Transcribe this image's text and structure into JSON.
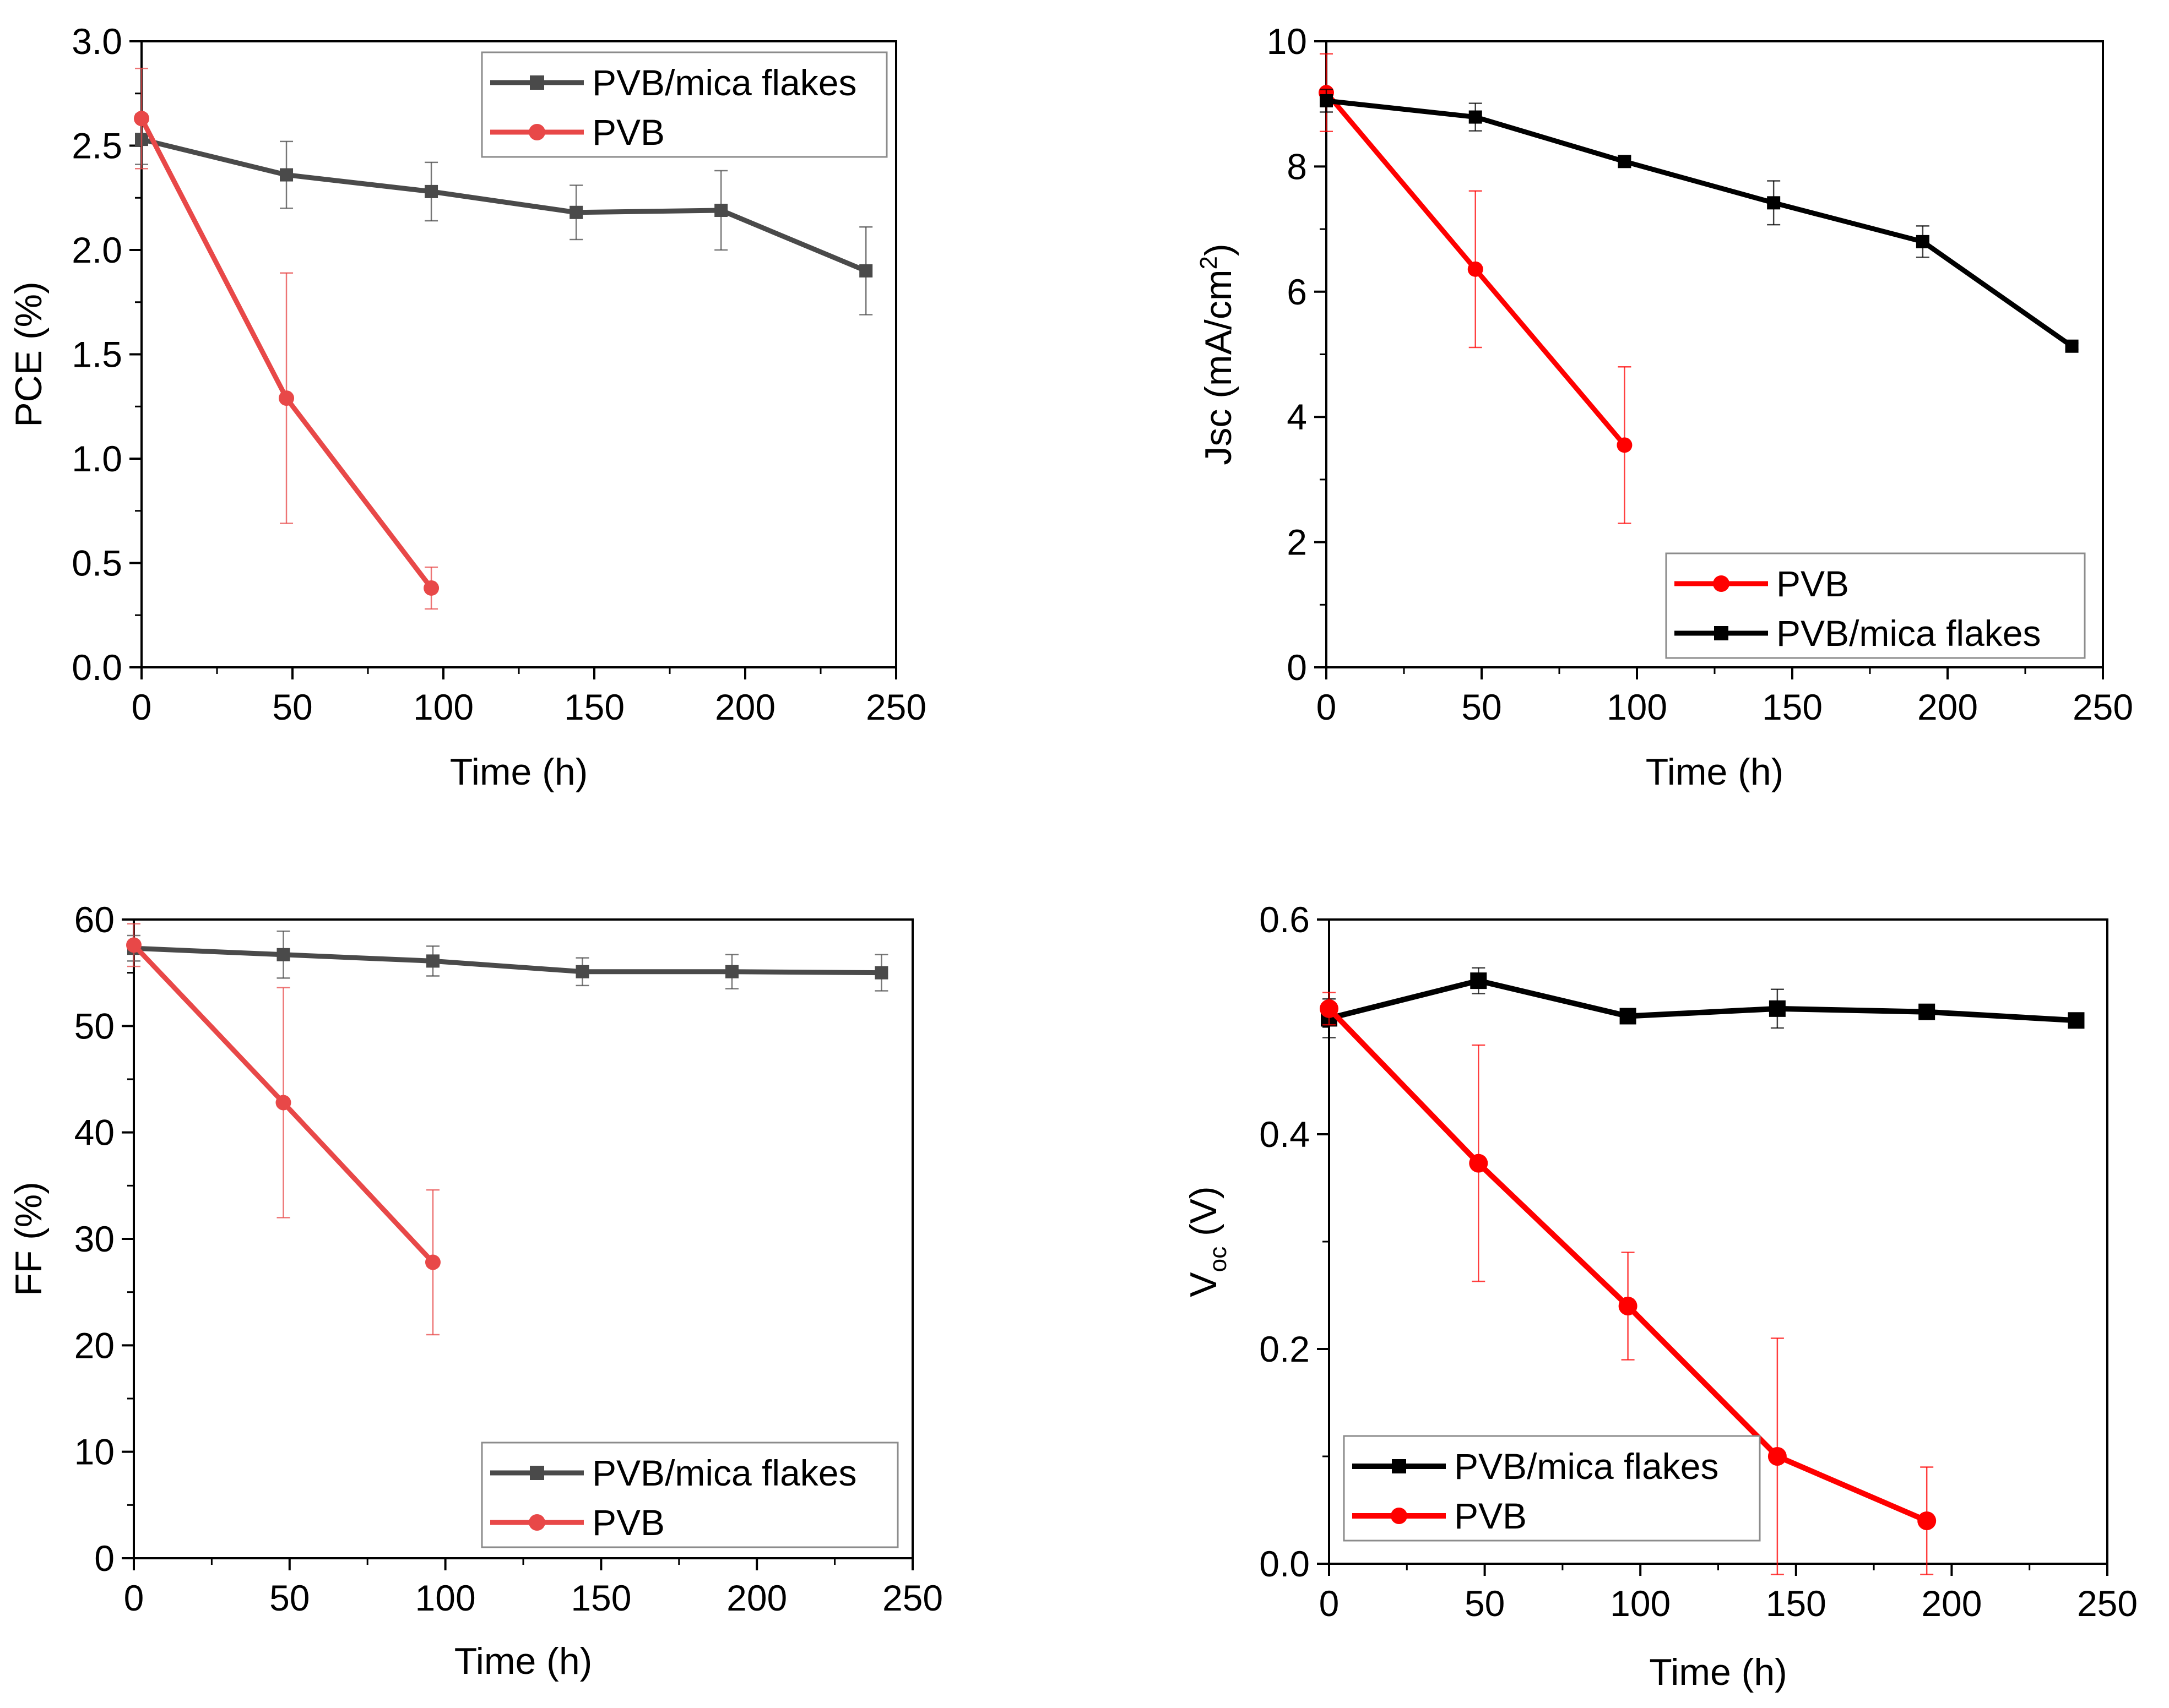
{
  "figure": {
    "background": "#ffffff"
  },
  "chart_data": [
    {
      "id": "pce",
      "type": "line",
      "xlabel": "Time (h)",
      "ylabel": "PCE (%)",
      "xlim": [
        0,
        250
      ],
      "ylim": [
        0,
        3.0
      ],
      "xticks": [
        "0",
        "50",
        "100",
        "150",
        "200",
        "250"
      ],
      "yticks": [
        "0.0",
        "0.5",
        "1.0",
        "1.5",
        "2.0",
        "2.5",
        "3.0"
      ],
      "legend_position": "top-right",
      "series": [
        {
          "name": "PVB/mica flakes",
          "color": "#4a4a4a",
          "marker": "square",
          "x": [
            0,
            48,
            96,
            144,
            192,
            240
          ],
          "y": [
            2.53,
            2.36,
            2.28,
            2.18,
            2.19,
            1.9
          ],
          "err": [
            0.12,
            0.16,
            0.14,
            0.13,
            0.19,
            0.21
          ]
        },
        {
          "name": "PVB",
          "color": "#e84848",
          "marker": "circle",
          "x": [
            0,
            48,
            96
          ],
          "y": [
            2.63,
            1.29,
            0.38
          ],
          "err": [
            0.24,
            0.6,
            0.1
          ]
        }
      ]
    },
    {
      "id": "jsc",
      "type": "line",
      "xlabel": "Time (h)",
      "ylabel": "Jsc (mA/cm",
      "ylabel_sup": "2",
      "ylabel_end": ")",
      "xlim": [
        0,
        250
      ],
      "ylim": [
        0,
        10
      ],
      "xticks": [
        "0",
        "50",
        "100",
        "150",
        "200",
        "250"
      ],
      "yticks": [
        "0",
        "2",
        "4",
        "6",
        "8",
        "10"
      ],
      "legend_position": "bottom-right",
      "series": [
        {
          "name": "PVB",
          "color": "#ff0000",
          "marker": "circle",
          "x": [
            0,
            48,
            96
          ],
          "y": [
            9.18,
            6.36,
            3.55
          ],
          "err": [
            0.62,
            1.25,
            1.25
          ]
        },
        {
          "name": "PVB/mica flakes",
          "color": "#000000",
          "marker": "square",
          "x": [
            0,
            48,
            96,
            144,
            192,
            240
          ],
          "y": [
            9.05,
            8.79,
            8.08,
            7.42,
            6.8,
            5.13
          ],
          "err": [
            0.18,
            0.22,
            0.08,
            0.35,
            0.25,
            0.05
          ]
        }
      ]
    },
    {
      "id": "ff",
      "type": "line",
      "xlabel": "Time (h)",
      "ylabel": "FF (%)",
      "xlim": [
        0,
        250
      ],
      "ylim": [
        0,
        60
      ],
      "xticks": [
        "0",
        "50",
        "100",
        "150",
        "200",
        "250"
      ],
      "yticks": [
        "0",
        "10",
        "20",
        "30",
        "40",
        "50",
        "60"
      ],
      "legend_position": "bottom-right",
      "series": [
        {
          "name": "PVB/mica flakes",
          "color": "#4a4a4a",
          "marker": "square",
          "x": [
            0,
            48,
            96,
            144,
            192,
            240
          ],
          "y": [
            57.3,
            56.7,
            56.1,
            55.1,
            55.1,
            55.0
          ],
          "err": [
            1.2,
            2.2,
            1.4,
            1.3,
            1.6,
            1.7
          ]
        },
        {
          "name": "PVB",
          "color": "#e84848",
          "marker": "circle",
          "x": [
            0,
            48,
            96
          ],
          "y": [
            57.6,
            42.8,
            27.8
          ],
          "err": [
            2.0,
            10.8,
            6.8
          ]
        }
      ]
    },
    {
      "id": "voc",
      "type": "line",
      "xlabel": "Time (h)",
      "ylabel": "V",
      "ylabel_sub": "oc",
      "ylabel_end": " (V)",
      "xlim": [
        0,
        250
      ],
      "ylim": [
        0,
        0.6
      ],
      "xticks": [
        "0",
        "50",
        "100",
        "150",
        "200",
        "250"
      ],
      "yticks": [
        "0.0",
        "0.2",
        "0.4",
        "0.6"
      ],
      "legend_position": "bottom-left",
      "series": [
        {
          "name": "PVB/mica flakes",
          "color": "#000000",
          "marker": "square",
          "x": [
            0,
            48,
            96,
            144,
            192,
            240
          ],
          "y": [
            0.508,
            0.543,
            0.51,
            0.517,
            0.514,
            0.506
          ],
          "err": [
            0.018,
            0.012,
            0.006,
            0.018,
            0.006,
            0.005
          ]
        },
        {
          "name": "PVB",
          "color": "#ff0000",
          "marker": "circle",
          "x": [
            0,
            48,
            96,
            144,
            192
          ],
          "y": [
            0.517,
            0.373,
            0.24,
            0.1,
            0.04
          ],
          "err": [
            0.015,
            0.11,
            0.05,
            0.11,
            0.05
          ]
        }
      ]
    }
  ]
}
